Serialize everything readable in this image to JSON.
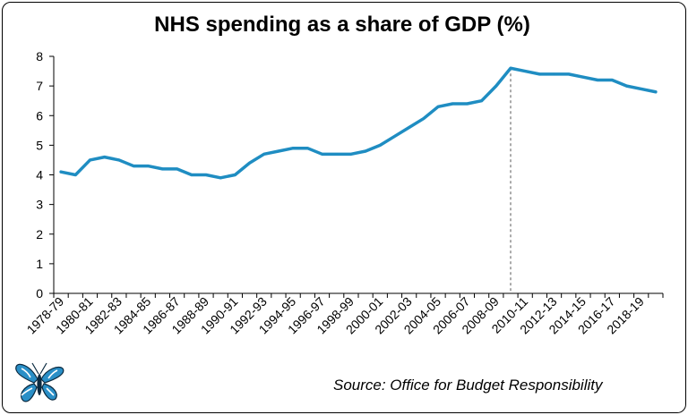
{
  "chart_data": {
    "type": "line",
    "title": "NHS spending as a share of GDP (%)",
    "xlabel": "",
    "ylabel": "",
    "ylim": [
      0,
      8
    ],
    "yticks": [
      0,
      1,
      2,
      3,
      4,
      5,
      6,
      7,
      8
    ],
    "grid": false,
    "legend": "none",
    "categories": [
      "1978-79",
      "1979-80",
      "1980-81",
      "1981-82",
      "1982-83",
      "1983-84",
      "1984-85",
      "1985-86",
      "1986-87",
      "1987-88",
      "1988-89",
      "1989-90",
      "1990-91",
      "1991-92",
      "1992-93",
      "1993-94",
      "1994-95",
      "1995-96",
      "1996-97",
      "1997-98",
      "1998-99",
      "1999-00",
      "2000-01",
      "2001-02",
      "2002-03",
      "2003-04",
      "2004-05",
      "2005-06",
      "2006-07",
      "2007-08",
      "2008-09",
      "2009-10",
      "2010-11",
      "2011-12",
      "2012-13",
      "2013-14",
      "2014-15",
      "2015-16",
      "2016-17",
      "2017-18",
      "2018-19",
      "2019-20"
    ],
    "tick_labels": [
      "1978-79",
      "1980-81",
      "1982-83",
      "1984-85",
      "1986-87",
      "1988-89",
      "1990-91",
      "1992-93",
      "1994-95",
      "1996-97",
      "1998-99",
      "2000-01",
      "2002-03",
      "2004-05",
      "2006-07",
      "2008-09",
      "2010-11",
      "2012-13",
      "2014-15",
      "2016-17",
      "2018-19"
    ],
    "series": [
      {
        "name": "NHS spending as a share of GDP",
        "color": "#1F8DC2",
        "values": [
          4.1,
          4.0,
          4.5,
          4.6,
          4.5,
          4.3,
          4.3,
          4.2,
          4.2,
          4.0,
          4.0,
          3.9,
          4.0,
          4.4,
          4.7,
          4.8,
          4.9,
          4.9,
          4.7,
          4.7,
          4.7,
          4.8,
          5.0,
          5.3,
          5.6,
          5.9,
          6.3,
          6.4,
          6.4,
          6.5,
          7.0,
          7.6,
          7.5,
          7.4,
          7.4,
          7.4,
          7.3,
          7.2,
          7.2,
          7.0,
          6.9,
          6.8
        ]
      }
    ],
    "annotations": [
      {
        "type": "vertical-dashed-line",
        "at": "2009-10",
        "color": "#555555"
      }
    ],
    "source": "Source: Office for Budget Responsibility"
  }
}
